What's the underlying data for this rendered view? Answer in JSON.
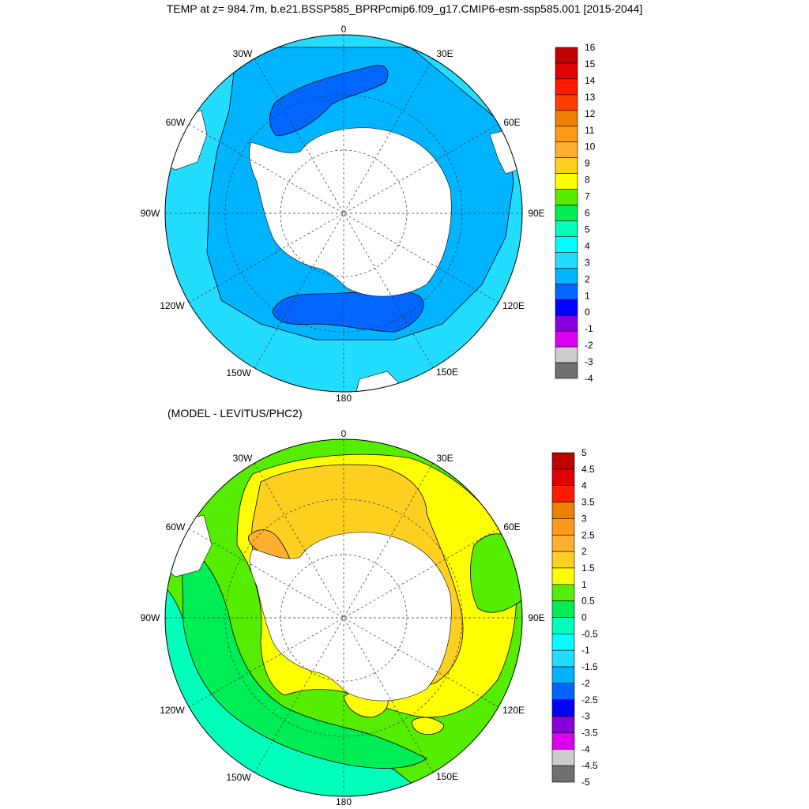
{
  "title": "TEMP at z= 984.7m, b.e21.BSSP585_BPRPcmip6.f09_g17.CMIP6-esm-ssp585.001 [2015-2044]",
  "subtitle": "(MODEL - LEVITUS/PHC2)",
  "map_labels": {
    "deg0": "0",
    "deg30e": "30E",
    "deg60e": "60E",
    "deg90e": "90E",
    "deg120e": "120E",
    "deg150e": "150E",
    "deg180": "180",
    "deg150w": "150W",
    "deg120w": "120W",
    "deg90w": "90W",
    "deg60w": "60W",
    "deg30w": "30W"
  },
  "colorbar_top": {
    "labels": [
      "16",
      "15",
      "14",
      "13",
      "12",
      "11",
      "10",
      "9",
      "8",
      "7",
      "6",
      "5",
      "4",
      "3",
      "2",
      "1",
      "0",
      "-1",
      "-2",
      "-3",
      "-4"
    ],
    "colors": [
      "#c00000",
      "#e00000",
      "#ff1a00",
      "#ff3d00",
      "#f08000",
      "#ff9a1a",
      "#ffb030",
      "#ffd020",
      "#ffff00",
      "#55ee00",
      "#00ee55",
      "#00ffbb",
      "#00ffff",
      "#22ddff",
      "#00b4ff",
      "#0066ff",
      "#0000ff",
      "#8800dd",
      "#dd00ee",
      "#cccccc",
      "#707070"
    ]
  },
  "colorbar_bottom": {
    "labels": [
      "5",
      "4.5",
      "4",
      "3.5",
      "3",
      "2.5",
      "2",
      "1.5",
      "1",
      "0.5",
      "0",
      "-0.5",
      "-1",
      "-1.5",
      "-2",
      "-2.5",
      "-3",
      "-3.5",
      "-4",
      "-4.5",
      "-5"
    ],
    "colors": [
      "#c00000",
      "#e00000",
      "#ff1a00",
      "#f08000",
      "#ff9a1a",
      "#ffb030",
      "#ffd020",
      "#ffff00",
      "#55ee00",
      "#00ee55",
      "#00ffbb",
      "#00ffff",
      "#22ddff",
      "#00b4ff",
      "#0066ff",
      "#0000ff",
      "#8800dd",
      "#dd00ee",
      "#cccccc",
      "#707070"
    ]
  },
  "map_colors": {
    "top_outer": "#22ddff",
    "top_main": "#00b4ff",
    "top_dark": "#0066ff",
    "bottom_yellow": "#ffff00",
    "bottom_gold": "#ffd020",
    "bottom_orange": "#ffb030",
    "bottom_green": "#55ee00",
    "bottom_teal": "#00ee55",
    "bottom_cyan": "#00ffbb",
    "land": "#ffffff"
  }
}
